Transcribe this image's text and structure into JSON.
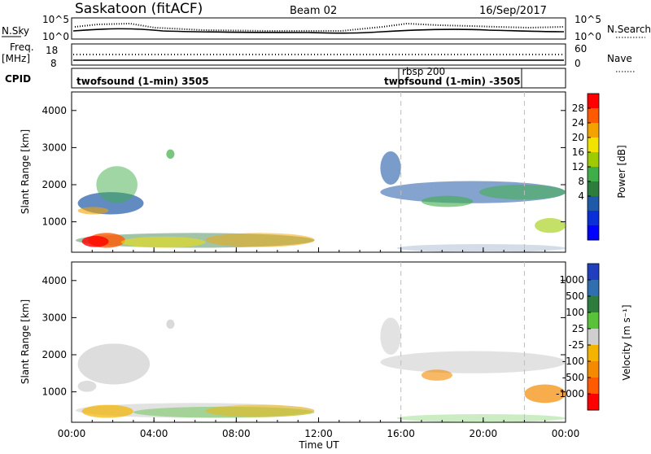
{
  "header": {
    "station": "Saskatoon (fitACF)",
    "beam": "Beam 02",
    "date": "16/Sep/2017"
  },
  "noise_panel": {
    "left_label": "N.Sky",
    "right_label": "N.Search",
    "left_ticks": [
      "10^5",
      "10^0"
    ],
    "right_ticks": [
      "10^5",
      "10^0"
    ]
  },
  "freq_panel": {
    "left_label_1": "Freq.",
    "left_label_2": "[MHz]",
    "right_label": "Nave",
    "left_ticks": [
      "18",
      "8"
    ],
    "right_ticks": [
      "60",
      "0"
    ]
  },
  "cpid_panel": {
    "label": "CPID",
    "entries": [
      "twofsound (1-min) 3505",
      "rbsp 200",
      "twofsound (1-min) -3505"
    ]
  },
  "chart_data": [
    {
      "type": "heatmap",
      "quantity": "power",
      "ylabel": "Slant Range [km]",
      "ylim": [
        180,
        4500
      ],
      "y_ticks": [
        1000,
        2000,
        3000,
        4000
      ],
      "x_ticks": [
        "00:00",
        "04:00",
        "08:00",
        "12:00",
        "16:00",
        "20:00",
        "00:00"
      ],
      "colorbar": {
        "label": "Power [dB]",
        "ticks": [
          "28",
          "24",
          "20",
          "16",
          "12",
          "8",
          "4"
        ],
        "colors": [
          "#ff0000",
          "#ff5a00",
          "#f3a300",
          "#f2e200",
          "#9ecb00",
          "#3fae49",
          "#2f7d3e",
          "#1f5aa8",
          "#0a2ed8",
          "#0000ff"
        ]
      },
      "vertical_markers_hours": [
        16,
        22
      ]
    },
    {
      "type": "heatmap",
      "quantity": "velocity",
      "ylabel": "Slant Range [km]",
      "ylim": [
        180,
        4500
      ],
      "y_ticks": [
        1000,
        2000,
        3000,
        4000
      ],
      "x_ticks": [
        "00:00",
        "04:00",
        "08:00",
        "12:00",
        "16:00",
        "20:00",
        "00:00"
      ],
      "xlabel": "Time UT",
      "colorbar": {
        "label": "Velocity [m s⁻¹]",
        "ticks": [
          "1000",
          "500",
          "100",
          "25",
          "-25",
          "-100",
          "-500",
          "-1000"
        ],
        "colors": [
          "#1f3fbf",
          "#2f6fb0",
          "#2f7d3e",
          "#57c23a",
          "#cfcfcf",
          "#f3b400",
          "#f48a00",
          "#ff5a00",
          "#ff0000"
        ]
      },
      "vertical_markers_hours": [
        16,
        22
      ]
    }
  ]
}
